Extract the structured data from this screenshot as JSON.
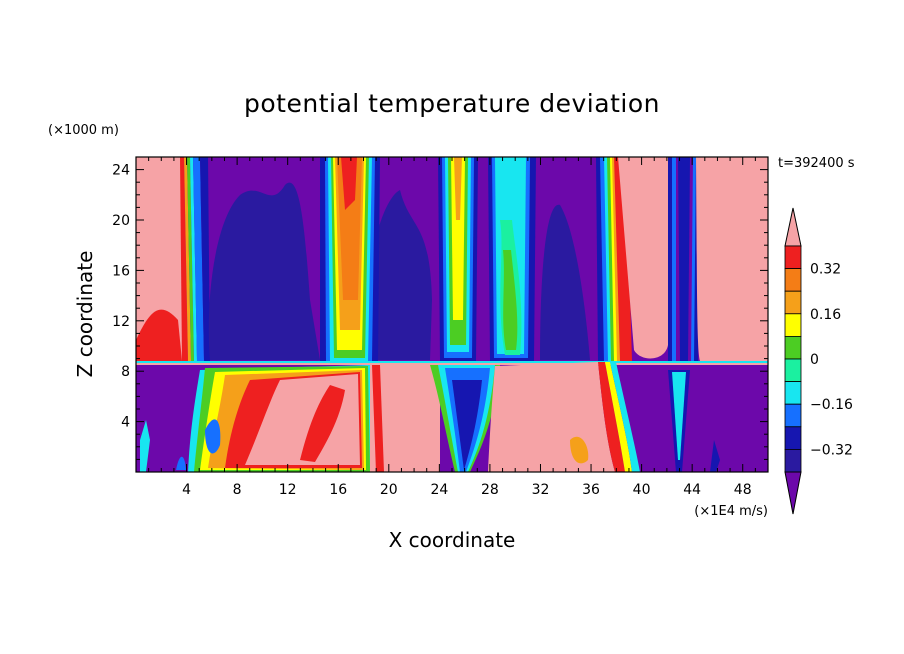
{
  "chart_data": {
    "type": "heatmap",
    "title": "potential temperature deviation",
    "time_label": "t=392400 s",
    "xlabel": "X coordinate",
    "ylabel": "Z coordinate",
    "x_unit": "(×1E4 m/s)",
    "y_unit": "(×1000 m)",
    "x_ticks": [
      "4",
      "8",
      "12",
      "16",
      "20",
      "24",
      "28",
      "32",
      "36",
      "40",
      "44",
      "48"
    ],
    "y_ticks": [
      "4",
      "8",
      "12",
      "16",
      "20",
      "24"
    ],
    "xlim": [
      0,
      50
    ],
    "ylim": [
      0,
      25
    ],
    "colorbar": {
      "levels": [
        -0.4,
        -0.32,
        -0.24,
        -0.16,
        -0.08,
        0,
        0.08,
        0.16,
        0.24,
        0.32,
        0.4
      ],
      "labels": [
        "0.32",
        "0.16",
        "0",
        "−0.16",
        "−0.32"
      ],
      "colors": [
        "#f6a3a6",
        "#ee2020",
        "#f47d16",
        "#f5a01a",
        "#ffff00",
        "#4ccd23",
        "#1bf0a0",
        "#18e6f0",
        "#1670ff",
        "#1616b0",
        "#2a1aa0",
        "#6c08aa"
      ]
    },
    "upper_bands": [
      {
        "x_range": [
          0,
          3.6
        ],
        "level": "max",
        "note": "pink block with red edge"
      },
      {
        "x_range": [
          3.6,
          5.5
        ],
        "level": "gradient",
        "note": "red to blue transition"
      },
      {
        "x_range": [
          14.2,
          18.8
        ],
        "level": "positive",
        "note": "orange/yellow plume"
      },
      {
        "x_range": [
          24.0,
          26.6
        ],
        "level": "mixed",
        "note": "green/yellow column"
      },
      {
        "x_range": [
          28.3,
          31.3
        ],
        "level": "mixed",
        "note": "cyan/green column"
      },
      {
        "x_range": [
          36.5,
          40.6
        ],
        "level": "gradient",
        "note": "red edge to pink"
      },
      {
        "x_range": [
          40.6,
          43.2
        ],
        "level": "max",
        "note": "pink column"
      },
      {
        "x_range": [
          44.3,
          50
        ],
        "level": "max",
        "note": "pink block"
      }
    ],
    "inversion_height": 8.7,
    "lower_regions": [
      {
        "x_range": [
          5,
          18
        ],
        "level": "mixed-positive"
      },
      {
        "x_range": [
          18,
          24
        ],
        "level": "max"
      },
      {
        "x_range": [
          24,
          28
        ],
        "level": "mixed-negative"
      },
      {
        "x_range": [
          28,
          37
        ],
        "level": "max"
      }
    ]
  }
}
